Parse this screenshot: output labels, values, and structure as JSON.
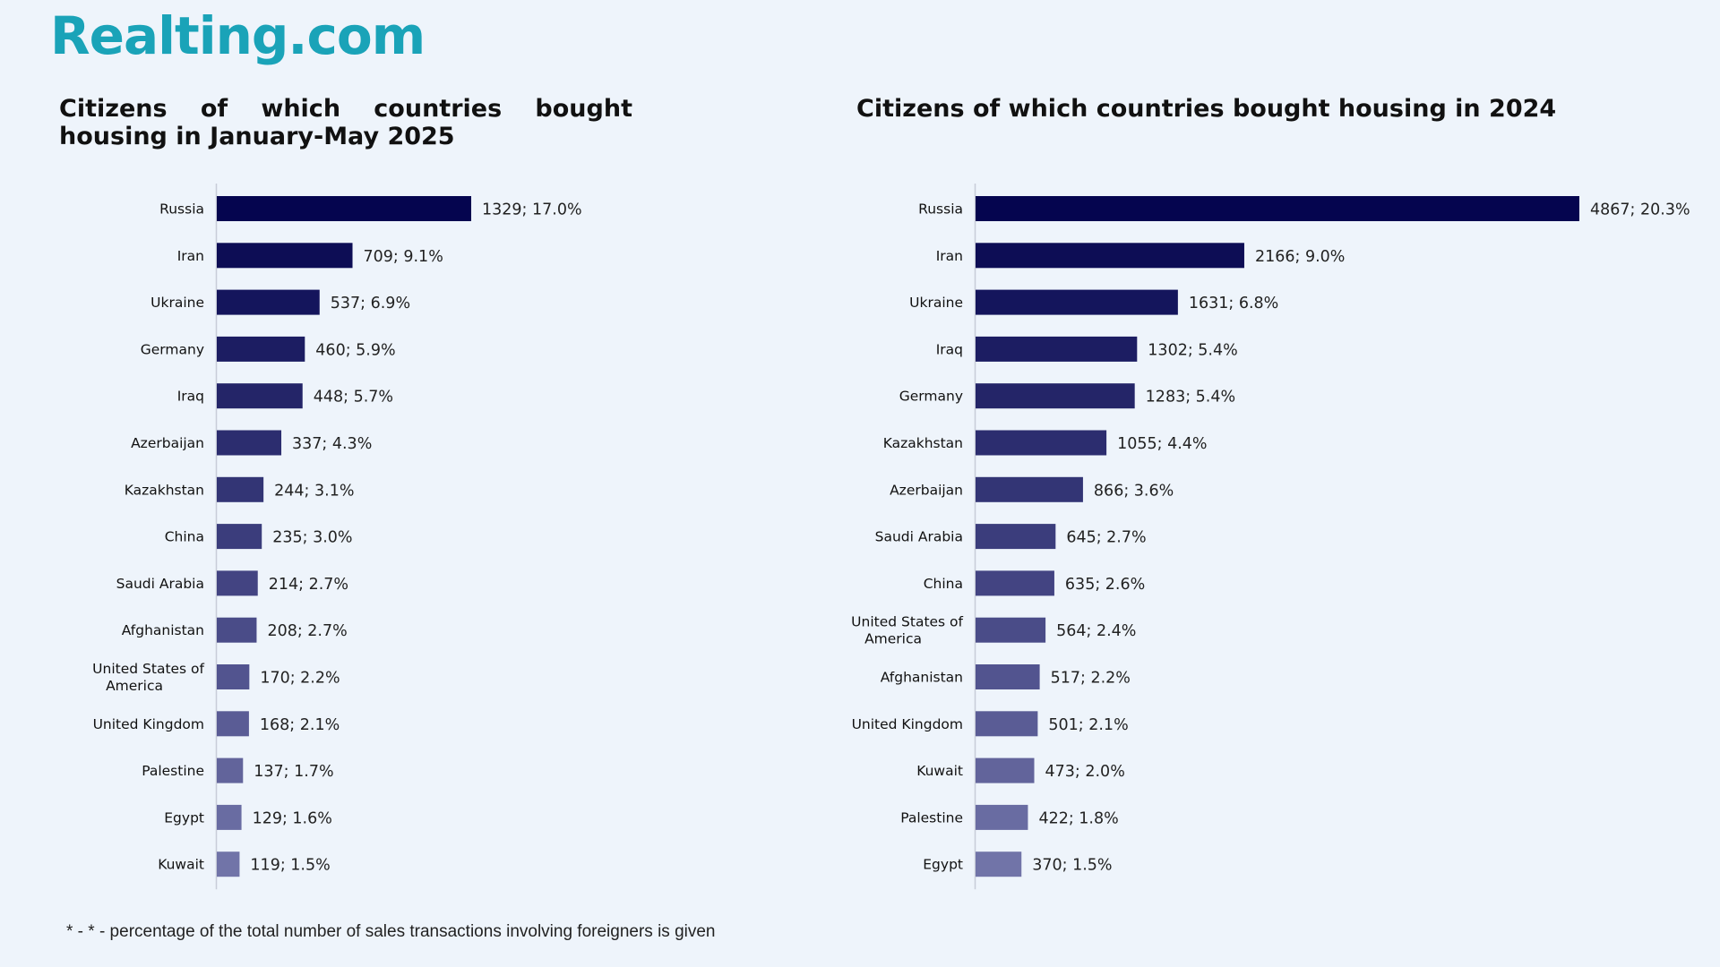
{
  "header": {
    "logo_text": "Realting.com"
  },
  "footnote": "* - * - percentage of the total number of sales transactions involving foreigners is given",
  "colors": {
    "bar_darkest": "#05054f",
    "bar_lightest": "#7174a8",
    "logo": "#1aa3b8",
    "axis": "#c8ccd8"
  },
  "chart_data": [
    {
      "type": "bar",
      "orientation": "horizontal",
      "title": "Citizens of which countries bought housing in January-May 2025",
      "categories": [
        "Russia",
        "Iran",
        "Ukraine",
        "Germany",
        "Iraq",
        "Azerbaijan",
        "Kazakhstan",
        "China",
        "Saudi Arabia",
        "Afghanistan",
        "United States of America",
        "United Kingdom",
        "Palestine",
        "Egypt",
        "Kuwait"
      ],
      "category_lines": [
        [
          "Russia"
        ],
        [
          "Iran"
        ],
        [
          "Ukraine"
        ],
        [
          "Germany"
        ],
        [
          "Iraq"
        ],
        [
          "Azerbaijan"
        ],
        [
          "Kazakhstan"
        ],
        [
          "China"
        ],
        [
          "Saudi Arabia"
        ],
        [
          "Afghanistan"
        ],
        [
          "United States of",
          "America"
        ],
        [
          "United Kingdom"
        ],
        [
          "Palestine"
        ],
        [
          "Egypt"
        ],
        [
          "Kuwait"
        ]
      ],
      "values": [
        1329,
        709,
        537,
        460,
        448,
        337,
        244,
        235,
        214,
        208,
        170,
        168,
        137,
        129,
        119
      ],
      "data_labels": [
        "1329; 17.0%",
        "709; 9.1%",
        "537; 6.9%",
        "460; 5.9%",
        "448; 5.7%",
        "337; 4.3%",
        "244; 3.1%",
        "235; 3.0%",
        "214; 2.7%",
        "208; 2.7%",
        "170; 2.2%",
        "168; 2.1%",
        "137; 1.7%",
        "129; 1.6%",
        "119; 1.5%"
      ],
      "grid": false,
      "legend": "none"
    },
    {
      "type": "bar",
      "orientation": "horizontal",
      "title": "Citizens of which countries bought housing in 2024",
      "categories": [
        "Russia",
        "Iran",
        "Ukraine",
        "Iraq",
        "Germany",
        "Kazakhstan",
        "Azerbaijan",
        "Saudi Arabia",
        "China",
        "United States of America",
        "Afghanistan",
        "United Kingdom",
        "Kuwait",
        "Palestine",
        "Egypt"
      ],
      "category_lines": [
        [
          "Russia"
        ],
        [
          "Iran"
        ],
        [
          "Ukraine"
        ],
        [
          "Iraq"
        ],
        [
          "Germany"
        ],
        [
          "Kazakhstan"
        ],
        [
          "Azerbaijan"
        ],
        [
          "Saudi Arabia"
        ],
        [
          "China"
        ],
        [
          "United States of",
          "America"
        ],
        [
          "Afghanistan"
        ],
        [
          "United Kingdom"
        ],
        [
          "Kuwait"
        ],
        [
          "Palestine"
        ],
        [
          "Egypt"
        ]
      ],
      "values": [
        4867,
        2166,
        1631,
        1302,
        1283,
        1055,
        866,
        645,
        635,
        564,
        517,
        501,
        473,
        422,
        370
      ],
      "data_labels": [
        "4867; 20.3%",
        "2166; 9.0%",
        "1631; 6.8%",
        "1302; 5.4%",
        "1283; 5.4%",
        "1055; 4.4%",
        "866; 3.6%",
        "645; 2.7%",
        "635; 2.6%",
        "564; 2.4%",
        "517; 2.2%",
        "501; 2.1%",
        "473; 2.0%",
        "422; 1.8%",
        "370; 1.5%"
      ],
      "grid": false,
      "legend": "none"
    }
  ]
}
